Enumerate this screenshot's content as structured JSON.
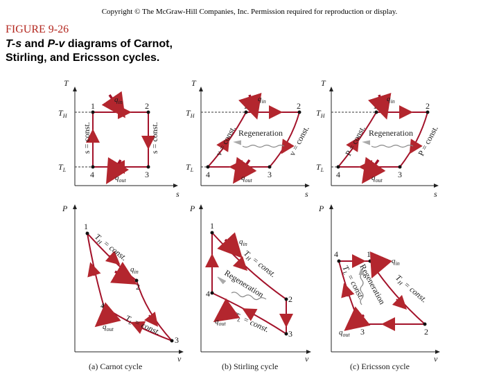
{
  "header": {
    "copyright": "Copyright © The McGraw-Hill Companies, Inc. Permission required for reproduction or display.",
    "figure_number": "FIGURE 9-26",
    "caption_part1": "T-s",
    "caption_and": " and ",
    "caption_part2": "P-v",
    "caption_rest": " diagrams of Carnot, Stirling, and Ericsson cycles."
  },
  "axes": {
    "T": "T",
    "s": "s",
    "P": "P",
    "v": "v",
    "TH": "T",
    "TH_sub": "H",
    "TL": "T",
    "TL_sub": "L"
  },
  "points": {
    "p1": "1",
    "p2": "2",
    "p3": "3",
    "p4": "4"
  },
  "heat": {
    "q": "q",
    "in_sub": "in",
    "out_sub": "out"
  },
  "labels": {
    "s_const": "s = const.",
    "v_const": "v = const.",
    "P_const": "P = const.",
    "regeneration": "Regeneration",
    "TH_const_sub": "H",
    "TL_const_sub": "L",
    "T": "T",
    "eq_const": " = const."
  },
  "captions": {
    "carnot": "(a) Carnot cycle",
    "stirling": "(b) Stirling cycle",
    "ericsson": "(c) Ericsson cycle"
  },
  "colors": {
    "cycle": "#a3122a",
    "axis": "#222222",
    "arrow": "#b3262e",
    "regen": "#888888"
  }
}
